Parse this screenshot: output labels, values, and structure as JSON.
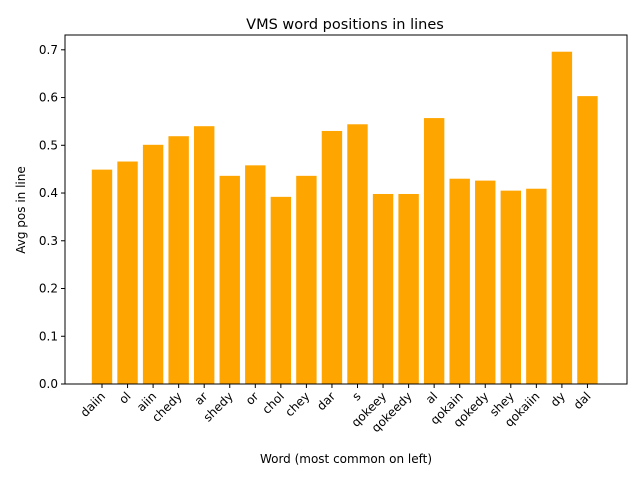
{
  "chart_data": {
    "type": "bar",
    "title": "VMS word positions in lines",
    "xlabel": "Word (most common on left)",
    "ylabel": "Avg pos in line",
    "categories": [
      "daiin",
      "ol",
      "aiin",
      "chedy",
      "ar",
      "shedy",
      "or",
      "chol",
      "chey",
      "dar",
      "s",
      "qokeey",
      "qokeedy",
      "al",
      "qokain",
      "qokedy",
      "shey",
      "qokaiin",
      "dy",
      "dal"
    ],
    "values": [
      0.449,
      0.466,
      0.501,
      0.519,
      0.54,
      0.436,
      0.458,
      0.392,
      0.436,
      0.53,
      0.544,
      0.398,
      0.398,
      0.557,
      0.43,
      0.426,
      0.405,
      0.409,
      0.696,
      0.603
    ],
    "ylim": [
      0,
      0.731
    ],
    "yticks": [
      "0.0",
      "0.1",
      "0.2",
      "0.3",
      "0.4",
      "0.5",
      "0.6",
      "0.7"
    ],
    "bar_color": "#ffa500",
    "grid": false,
    "legend": "none"
  }
}
